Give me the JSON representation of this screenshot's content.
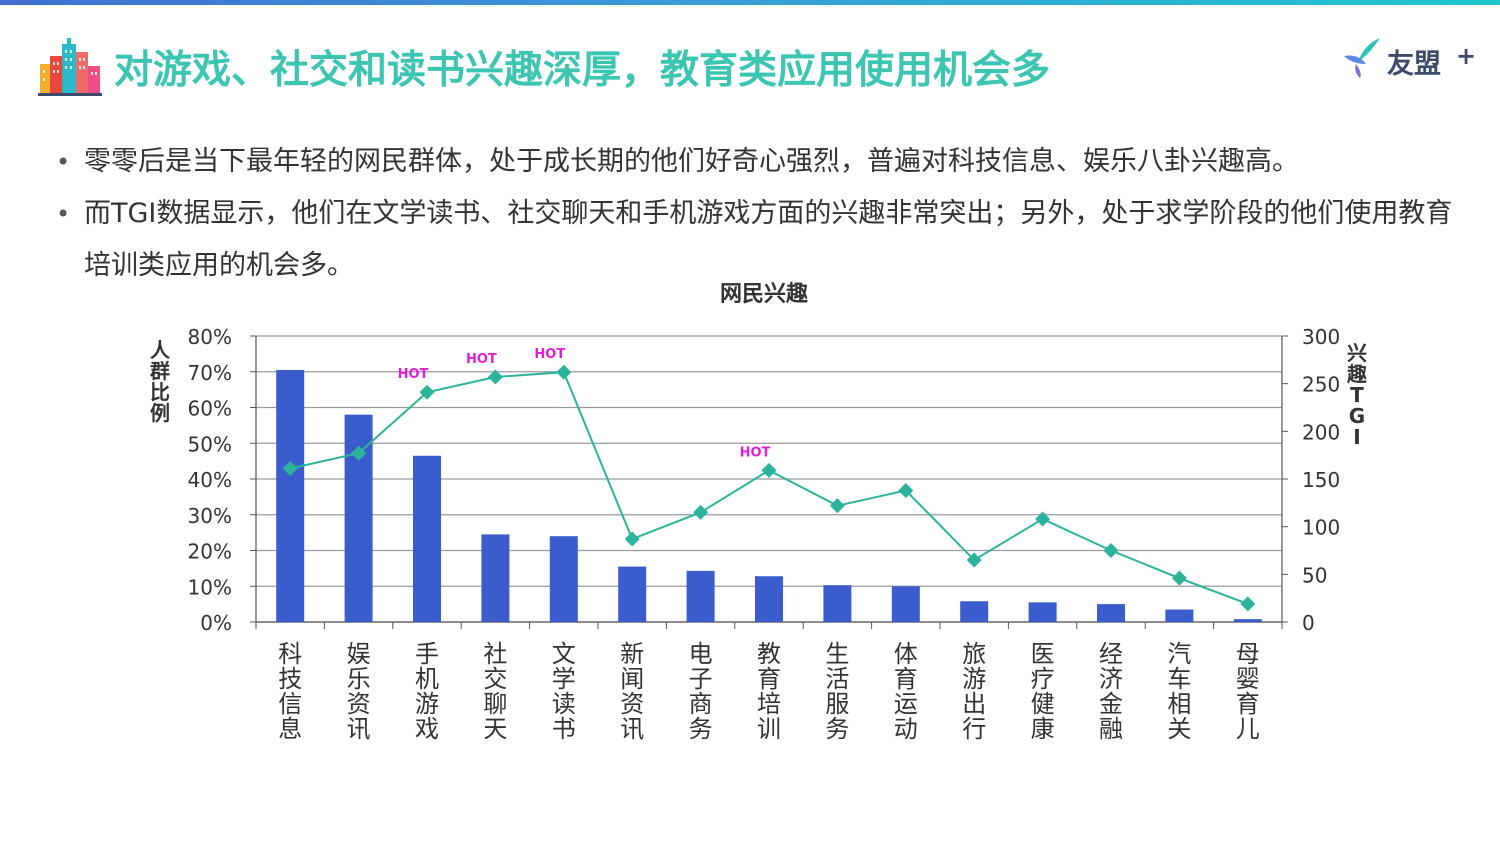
{
  "header": {
    "title": "对游戏、社交和读书兴趣深厚，教育类应用使用机会多",
    "brand_name": "友盟",
    "brand_plus": "+"
  },
  "bullets": [
    "零零后是当下最年轻的网民群体，处于成长期的他们好奇心强烈，普遍对科技信息、娱乐八卦兴趣高。",
    "而TGI数据显示，他们在文学读书、社交聊天和手机游戏方面的兴趣非常突出；另外，处于求学阶段的他们使用教育培训类应用的机会多。"
  ],
  "chart_data": {
    "type": "bar",
    "title": "网民兴趣",
    "categories": [
      "科技信息",
      "娱乐资讯",
      "手机游戏",
      "社交聊天",
      "文学读书",
      "新闻资讯",
      "电子商务",
      "教育培训",
      "生活服务",
      "体育运动",
      "旅游出行",
      "医疗健康",
      "经济金融",
      "汽车相关",
      "母婴育儿"
    ],
    "ylabel": "人群比例",
    "ylabel_right": "兴趣TGI",
    "ylim": [
      0,
      80
    ],
    "ylim_right": [
      0,
      300
    ],
    "yticks": [
      "0%",
      "10%",
      "20%",
      "30%",
      "40%",
      "50%",
      "60%",
      "70%",
      "80%"
    ],
    "yticks_right": [
      "0",
      "50",
      "100",
      "150",
      "200",
      "250",
      "300"
    ],
    "series": [
      {
        "name": "人群比例",
        "type": "bar",
        "axis": "left",
        "color": "#3a5ccc",
        "values": [
          70.5,
          58,
          46.5,
          24.5,
          24,
          15.5,
          14.3,
          12.8,
          10.3,
          10,
          5.8,
          5.5,
          5,
          3.5,
          0.8
        ]
      },
      {
        "name": "兴趣TGI",
        "type": "line",
        "axis": "right",
        "color": "#2bb39b",
        "values": [
          161,
          177,
          241,
          257,
          262,
          87,
          115,
          159,
          122,
          138,
          65,
          108,
          75,
          46,
          19
        ]
      }
    ],
    "annotations": [
      {
        "text": "HOT",
        "category": "手机游戏"
      },
      {
        "text": "HOT",
        "category": "社交聊天"
      },
      {
        "text": "HOT",
        "category": "文学读书"
      },
      {
        "text": "HOT",
        "category": "教育培训"
      }
    ],
    "hot_color": "#e020d8",
    "grid": true
  }
}
